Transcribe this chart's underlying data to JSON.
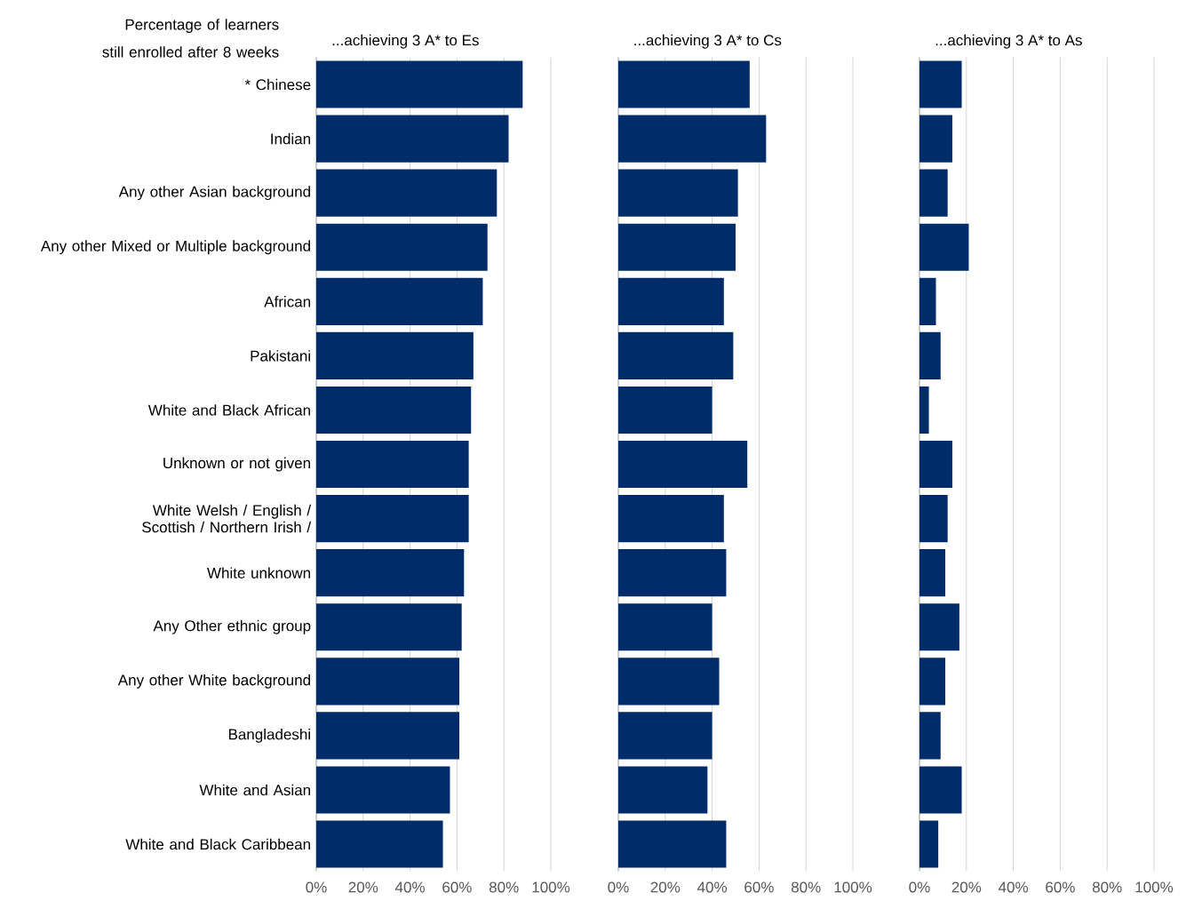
{
  "chart_data": [
    {
      "type": "bar",
      "orientation": "horizontal",
      "title": "...achieving 3 A* to Es",
      "ylabel": "Percentage of learners still enrolled after 8 weeks",
      "categories": [
        "* Chinese",
        "Indian",
        "Any other Asian background",
        "Any other Mixed or Multiple background",
        "African",
        "Pakistani",
        "White and Black African",
        "Unknown or not given",
        "White Welsh / English / Scottish / Northern Irish /",
        "White unknown",
        "Any Other ethnic group",
        "Any other White background",
        "Bangladeshi",
        "White and Asian",
        "White and Black Caribbean"
      ],
      "values": [
        88,
        82,
        77,
        73,
        71,
        67,
        66,
        65,
        65,
        63,
        62,
        61,
        61,
        57,
        54
      ],
      "color": "#002d6a",
      "xlim": [
        0,
        100
      ],
      "xticks": [
        {
          "value": 0,
          "label": "0%"
        },
        {
          "value": 20,
          "label": "20%"
        },
        {
          "value": 40,
          "label": "40%"
        },
        {
          "value": 60,
          "label": "60%"
        },
        {
          "value": 80,
          "label": "80%"
        },
        {
          "value": 100,
          "label": "100%"
        }
      ],
      "grid": "x"
    },
    {
      "type": "bar",
      "orientation": "horizontal",
      "title": "...achieving 3 A* to Cs",
      "categories": [
        null,
        null,
        null,
        null,
        null,
        null,
        null,
        null,
        null,
        null,
        null,
        null,
        null,
        null,
        null
      ],
      "values": [
        56,
        63,
        51,
        50,
        45,
        49,
        40,
        55,
        45,
        46,
        40,
        43,
        40,
        38,
        46
      ],
      "color": "#002d6a",
      "xlim": [
        0,
        100
      ],
      "xticks": [
        {
          "value": 0,
          "label": "0%"
        },
        {
          "value": 20,
          "label": "20%"
        },
        {
          "value": 40,
          "label": "40%"
        },
        {
          "value": 60,
          "label": "60%"
        },
        {
          "value": 80,
          "label": "80%"
        },
        {
          "value": 100,
          "label": "100%"
        }
      ],
      "grid": "x",
      "tick_labels": "x"
    },
    {
      "type": "bar",
      "orientation": "horizontal",
      "title": "...achieving 3 A* to As",
      "categories": [
        null,
        null,
        null,
        null,
        null,
        null,
        null,
        null,
        null,
        null,
        null,
        null,
        null,
        null,
        null
      ],
      "values": [
        18,
        14,
        12,
        21,
        7,
        9,
        4,
        14,
        12,
        11,
        17,
        11,
        9,
        18,
        8
      ],
      "color": "#002d6a",
      "xlim": [
        0,
        100
      ],
      "xticks": [
        {
          "value": 0,
          "label": "0%"
        },
        {
          "value": 20,
          "label": "20%"
        },
        {
          "value": 40,
          "label": "40%"
        },
        {
          "value": 60,
          "label": "60%"
        },
        {
          "value": 80,
          "label": "80%"
        },
        {
          "value": 100,
          "label": "100%"
        }
      ],
      "grid": "x",
      "tick_labels": "x"
    }
  ]
}
